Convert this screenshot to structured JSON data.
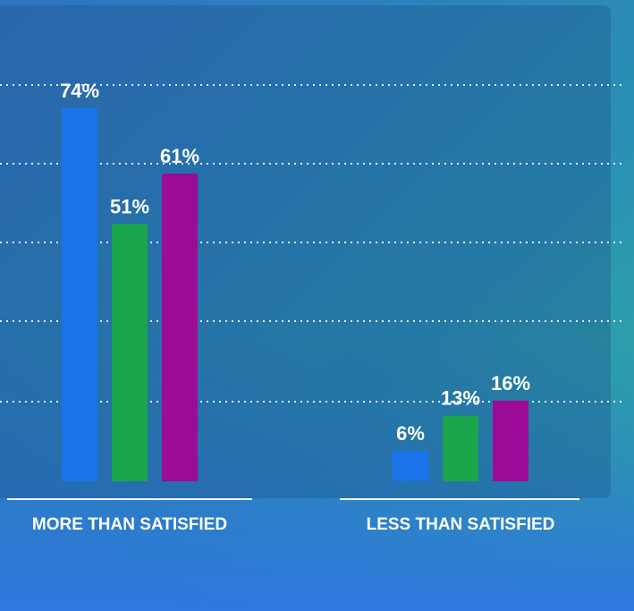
{
  "chart_data": {
    "type": "bar",
    "categories": [
      "MORE THAN SATISFIED",
      "LESS THAN SATISFIED"
    ],
    "series": [
      {
        "color": "#1a73e8",
        "values": [
          74,
          6
        ],
        "value_labels": [
          "74%",
          "6%"
        ]
      },
      {
        "color": "#1aa64a",
        "values": [
          51,
          13
        ],
        "value_labels": [
          "51%",
          "13%"
        ]
      },
      {
        "color": "#9c0a98",
        "values": [
          61,
          16
        ],
        "value_labels": [
          "61%",
          "16%"
        ]
      }
    ],
    "ylim": [
      0,
      80
    ]
  }
}
